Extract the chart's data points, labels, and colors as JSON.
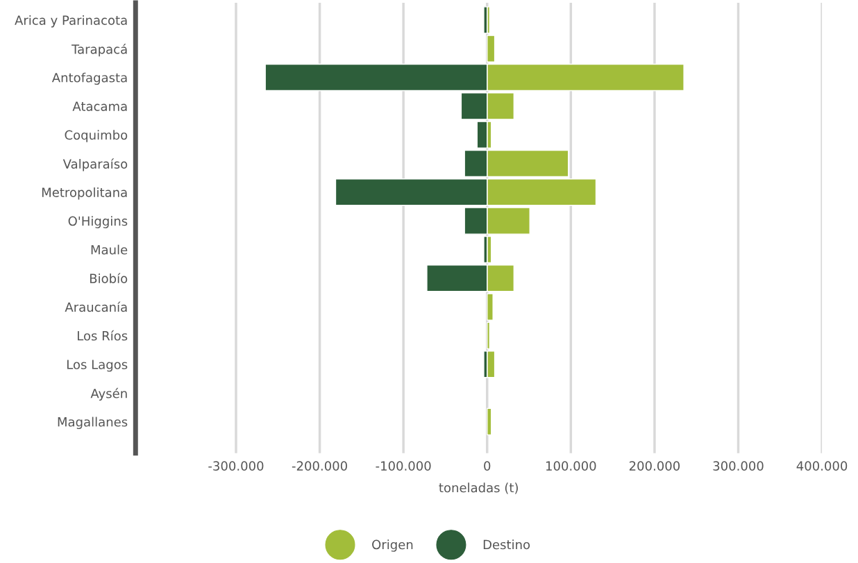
{
  "chart_data": {
    "type": "bar",
    "orientation": "horizontal",
    "xlabel": "toneladas (t)",
    "stacked": true,
    "categories": [
      "Arica y Parinacota",
      "Tarapacá",
      "Antofagasta",
      "Atacama",
      "Coquimbo",
      "Valparaíso",
      "Metropolitana",
      "O'Higgins",
      "Maule",
      "Biobío",
      "Araucanía",
      "Los Ríos",
      "Los Lagos",
      "Aysén",
      "Magallanes"
    ],
    "series": [
      {
        "name": "Origen",
        "color": "#a2bd3a",
        "values": [
          3000,
          9000,
          235000,
          32000,
          5000,
          97000,
          130000,
          51000,
          5000,
          32000,
          7000,
          3000,
          9000,
          null,
          5000
        ]
      },
      {
        "name": "Destino",
        "color": "#2d5e3a",
        "values": [
          -4000,
          null,
          -265000,
          -31000,
          -12000,
          -27000,
          -181000,
          -27000,
          -4000,
          -72000,
          null,
          null,
          -4000,
          null,
          null
        ]
      }
    ],
    "xlim": [
      -420000,
      400000
    ],
    "xticks": [
      {
        "value": -300000,
        "label": "-300.000"
      },
      {
        "value": -200000,
        "label": "-200.000"
      },
      {
        "value": -100000,
        "label": "-100.000"
      },
      0,
      {
        "value": 100000,
        "label": "100.000"
      },
      {
        "value": 200000,
        "label": "200.000"
      },
      {
        "value": 300000,
        "label": "300.000"
      },
      {
        "value": 400000,
        "label": "400.000"
      }
    ],
    "grid": "x",
    "legend": "bottom"
  }
}
